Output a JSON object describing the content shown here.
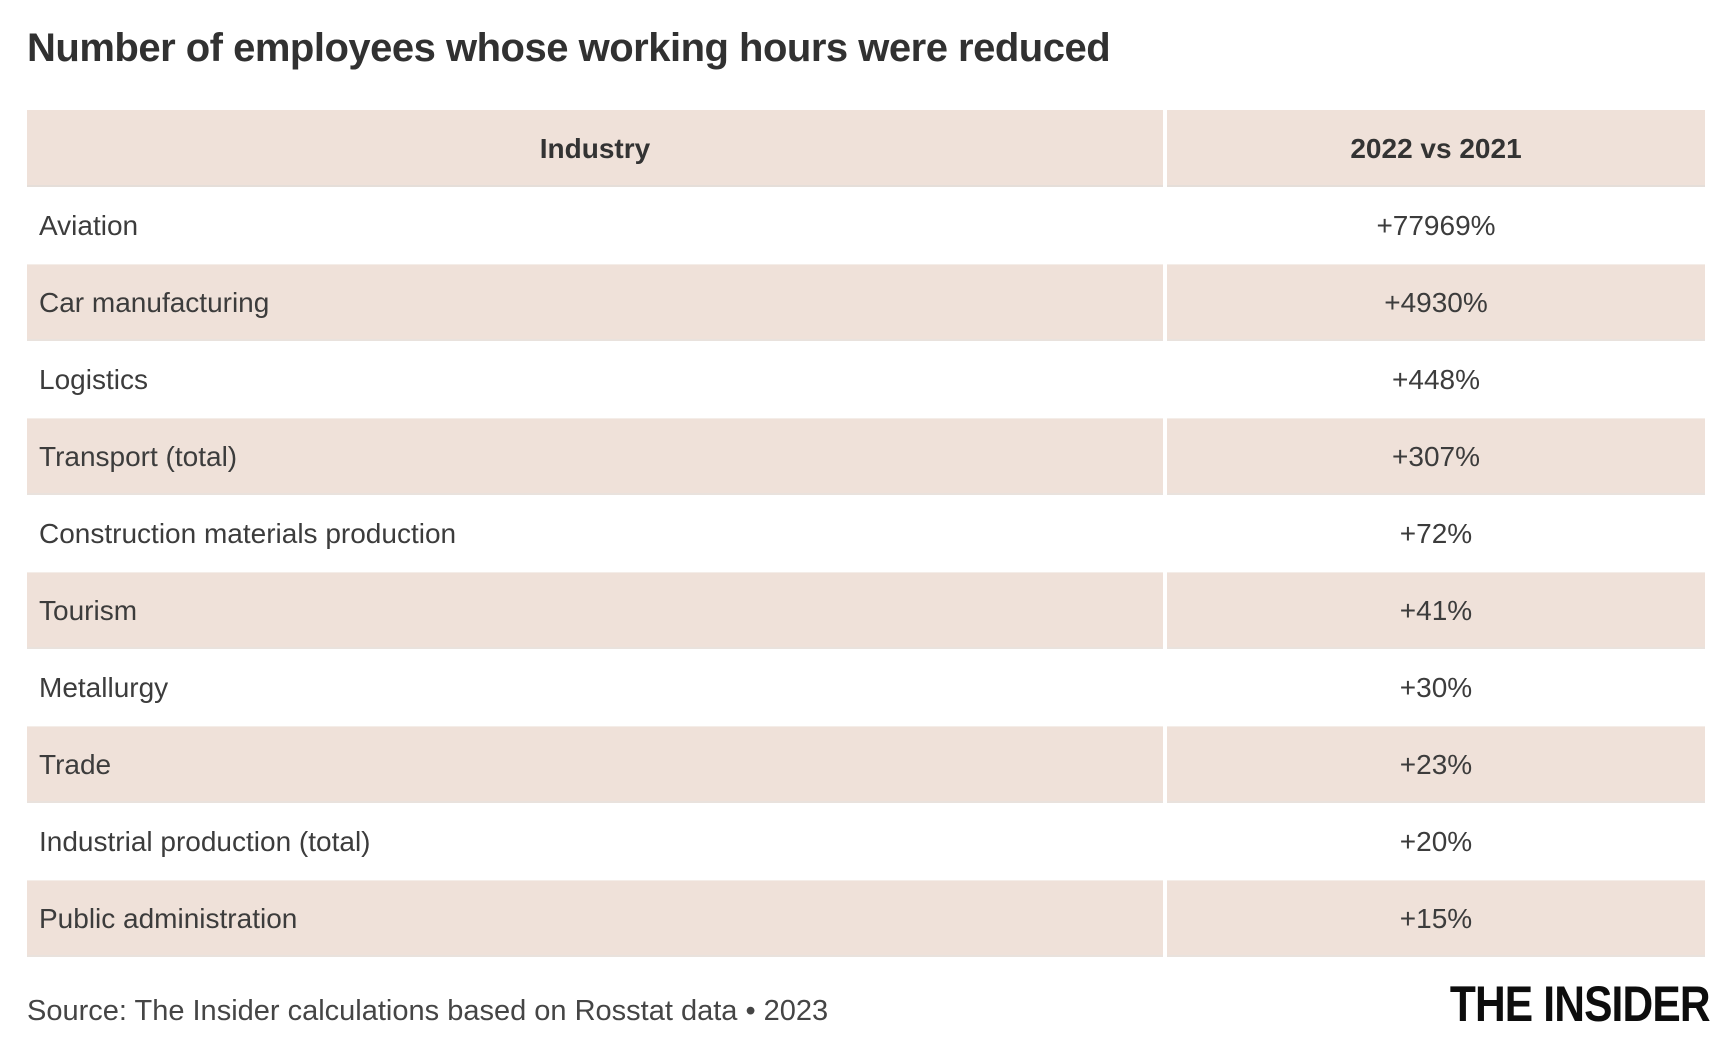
{
  "title": "Number of employees whose working hours were reduced",
  "table": {
    "headers": {
      "industry": "Industry",
      "value": "2022 vs 2021"
    },
    "rows": [
      {
        "industry": "Aviation",
        "change": "+77969%"
      },
      {
        "industry": "Car manufacturing",
        "change": "+4930%"
      },
      {
        "industry": "Logistics",
        "change": "+448%"
      },
      {
        "industry": "Transport (total)",
        "change": "+307%"
      },
      {
        "industry": "Construction materials production",
        "change": "+72%"
      },
      {
        "industry": "Tourism",
        "change": "+41%"
      },
      {
        "industry": "Metallurgy",
        "change": "+30%"
      },
      {
        "industry": "Trade",
        "change": "+23%"
      },
      {
        "industry": "Industrial production (total)",
        "change": "+20%"
      },
      {
        "industry": "Public administration",
        "change": "+15%"
      }
    ]
  },
  "footer": {
    "source": "Source: The Insider calculations based on Rosstat data • 2023",
    "logo": "THE INSIDER"
  },
  "colors": {
    "row_tint": "#efe1d9",
    "text": "#3c3c3c",
    "title_text": "#313131",
    "logo_text": "#0d0d0d",
    "background": "#ffffff"
  },
  "chart_data": {
    "type": "table",
    "title": "Number of employees whose working hours were reduced",
    "columns": [
      "Industry",
      "2022 vs 2021"
    ],
    "categories": [
      "Aviation",
      "Car manufacturing",
      "Logistics",
      "Transport (total)",
      "Construction materials production",
      "Tourism",
      "Metallurgy",
      "Trade",
      "Industrial production (total)",
      "Public administration"
    ],
    "values_percent_change": [
      77969,
      4930,
      448,
      307,
      72,
      41,
      30,
      23,
      20,
      15
    ],
    "value_labels": [
      "+77969%",
      "+4930%",
      "+448%",
      "+307%",
      "+72%",
      "+41%",
      "+30%",
      "+23%",
      "+20%",
      "+15%"
    ],
    "source": "Source: The Insider calculations based on Rosstat data • 2023",
    "layout": {
      "zebra_striping": true,
      "stripe_color": "#efe1d9",
      "header_background": "#efe1d9"
    }
  }
}
